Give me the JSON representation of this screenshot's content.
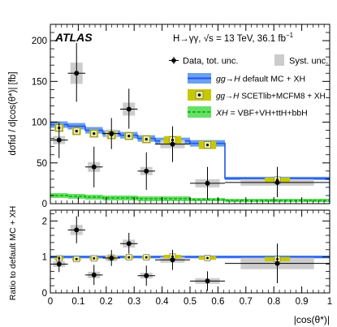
{
  "chart_data": [
    {
      "type": "line",
      "panel": "main",
      "experiment_label": "ATLAS",
      "process_label": "H→γγ, √s = 13 TeV,  36.1 fb",
      "lumi_superscript": "−1",
      "ylabel": "dσfid / d|cos(θ*)|  [fb]",
      "ylim": [
        0,
        220
      ],
      "yticks": [
        0,
        50,
        100,
        150,
        200
      ],
      "xlim": [
        0,
        1
      ],
      "bin_edges": [
        0,
        0.0625,
        0.125,
        0.1875,
        0.25,
        0.3125,
        0.375,
        0.5,
        0.625,
        1.0
      ],
      "data": {
        "name": "Data, tot. unc.",
        "x": [
          0.03125,
          0.09375,
          0.15625,
          0.21875,
          0.28125,
          0.34375,
          0.4375,
          0.5625,
          0.8125
        ],
        "y": [
          78,
          160,
          45,
          86,
          116,
          40,
          73,
          25,
          26
        ],
        "err_up": [
          22,
          37,
          25,
          19,
          25,
          23,
          22,
          20,
          19
        ],
        "err_down": [
          22,
          35,
          25,
          19,
          24,
          23,
          22,
          20,
          18
        ],
        "syst_up": [
          5,
          13,
          6,
          5,
          8,
          5,
          5,
          5,
          4
        ],
        "syst_down": [
          5,
          13,
          6,
          5,
          8,
          5,
          5,
          5,
          4
        ]
      },
      "syst_label": "Syst. unc.",
      "prediction_default": {
        "name": "default MC + XH",
        "prefix": "gg→H",
        "y": [
          97,
          95,
          90,
          86,
          84,
          80,
          77,
          74,
          31
        ],
        "unc": [
          4,
          4,
          4,
          4,
          4,
          4,
          4,
          4,
          2
        ]
      },
      "prediction_scetlib": {
        "name": "SCETlib+MCFM8 + XH",
        "prefix": "gg→H",
        "y": [
          93,
          89,
          86,
          84,
          83,
          79,
          78,
          72,
          29
        ],
        "unc": [
          5,
          5,
          5,
          5,
          5,
          5,
          5,
          5,
          3
        ]
      },
      "prediction_xh": {
        "name": "= VBF+VH+ttH+bbH",
        "prefix": "XH",
        "y": [
          10,
          9,
          8,
          7,
          7,
          6,
          6,
          5,
          4
        ],
        "unc": [
          3,
          3,
          3,
          3,
          3,
          3,
          3,
          2,
          2
        ]
      },
      "legend_position": "top-right",
      "colors": {
        "default_band": "#6aa0ee",
        "default_line": "#2255ee",
        "scetlib_box": "#c8c800",
        "xh_fill": "#66e066",
        "xh_line": "#00aa00",
        "syst_box": "#cccccc"
      }
    },
    {
      "type": "line",
      "panel": "ratio",
      "ylabel": "Ratio to default MC + XH",
      "xlabel": "|cos(θ*)|",
      "xlim": [
        0,
        1
      ],
      "ylim": [
        0,
        2.3
      ],
      "yticks": [
        0,
        1,
        2
      ],
      "xticks": [
        0,
        0.1,
        0.2,
        0.3,
        0.4,
        0.5,
        0.6,
        0.7,
        0.8,
        0.9,
        1
      ],
      "xtick_labels": [
        "0",
        "0.1",
        "0.2",
        "0.3",
        "0.4",
        "0.5",
        "0.6",
        "0.7",
        "0.8",
        "0.9",
        "1"
      ],
      "data_ratio": {
        "y": [
          0.8,
          1.75,
          0.5,
          0.97,
          1.37,
          0.48,
          0.92,
          0.33,
          0.82
        ],
        "err_up": [
          0.22,
          0.38,
          0.28,
          0.22,
          0.3,
          0.28,
          0.28,
          0.27,
          0.55
        ],
        "err_down": [
          0.22,
          0.37,
          0.28,
          0.22,
          0.28,
          0.28,
          0.28,
          0.27,
          0.55
        ],
        "syst": [
          0.08,
          0.14,
          0.09,
          0.08,
          0.11,
          0.08,
          0.08,
          0.08,
          0.16
        ]
      },
      "scetlib_ratio": {
        "y": [
          0.96,
          0.94,
          0.96,
          0.98,
          0.99,
          0.99,
          1.01,
          0.97,
          0.94
        ],
        "unc": [
          0.05,
          0.05,
          0.05,
          0.05,
          0.05,
          0.05,
          0.05,
          0.05,
          0.06
        ]
      },
      "default_ratio_unc": 0.04
    }
  ]
}
